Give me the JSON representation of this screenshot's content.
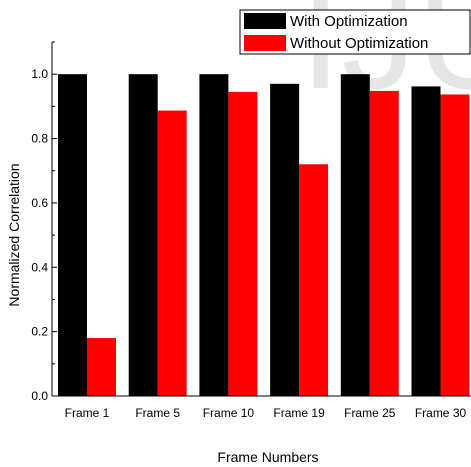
{
  "chart_data": {
    "type": "bar",
    "categories": [
      "Frame 1",
      "Frame 5",
      "Frame 10",
      "Frame 19",
      "Frame 25",
      "Frame 30"
    ],
    "series": [
      {
        "name": "With Optimization",
        "values": [
          1.0,
          1.0,
          1.0,
          0.97,
          1.0,
          0.962
        ],
        "color": "#000000"
      },
      {
        "name": "Without Optimization",
        "values": [
          0.18,
          0.887,
          0.945,
          0.72,
          0.948,
          0.937
        ],
        "color": "#ff0000"
      }
    ],
    "xlabel": "Frame Numbers",
    "ylabel": "Normalized Correlation",
    "ylim": [
      0,
      1.1
    ],
    "yticks": [
      0.0,
      0.2,
      0.4,
      0.6,
      0.8,
      1.0
    ],
    "ytick_labels": [
      "0.0",
      "0.2",
      "0.4",
      "0.6",
      "0.8",
      "1.0"
    ],
    "grid": false,
    "legend_position": "top-right",
    "watermark_text": "IJU"
  }
}
